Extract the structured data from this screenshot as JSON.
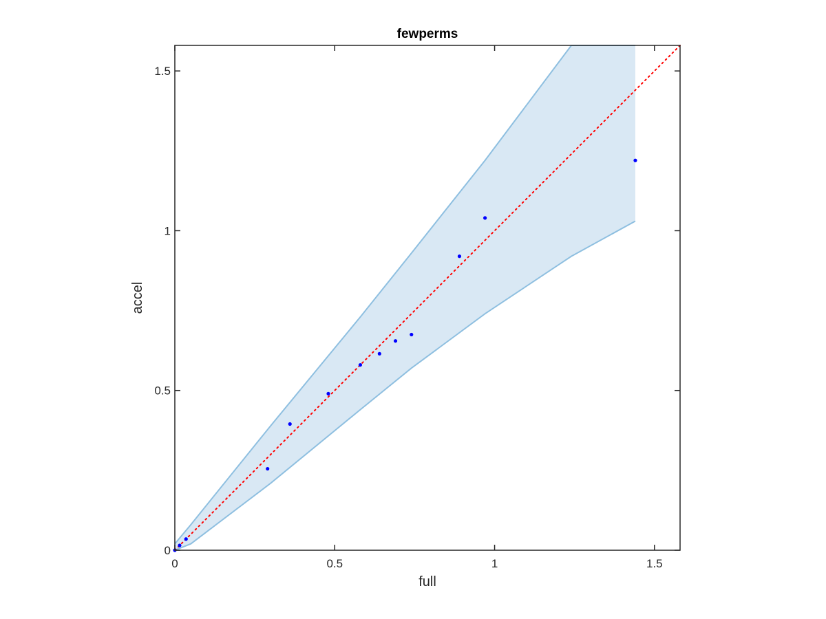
{
  "chart_data": {
    "type": "scatter",
    "title": "fewperms",
    "xlabel": "full",
    "ylabel": "accel",
    "xlim": [
      0,
      1.58
    ],
    "ylim": [
      0,
      1.58
    ],
    "xticks": [
      0,
      0.5,
      1,
      1.5
    ],
    "yticks": [
      0,
      0.5,
      1,
      1.5
    ],
    "xtick_labels": [
      "0",
      "0.5",
      "1",
      "1.5"
    ],
    "ytick_labels": [
      "0",
      "0.5",
      "1",
      "1.5"
    ],
    "grid": false,
    "series": [
      {
        "kind": "points",
        "color": "#0000ff",
        "x": [
          0.0,
          0.015,
          0.035,
          0.29,
          0.36,
          0.48,
          0.58,
          0.64,
          0.69,
          0.74,
          0.89,
          0.97,
          1.44
        ],
        "y": [
          0.0,
          0.015,
          0.035,
          0.255,
          0.395,
          0.49,
          0.58,
          0.615,
          0.655,
          0.675,
          0.92,
          1.04,
          1.22
        ]
      },
      {
        "kind": "band",
        "fill_color": "#d9e8f4",
        "edge_color": "#8ebfe0",
        "x": [
          0.0,
          0.05,
          0.3,
          0.58,
          0.74,
          0.97,
          1.24,
          1.44
        ],
        "upper": [
          0.02,
          0.08,
          0.39,
          0.73,
          0.93,
          1.22,
          1.58,
          1.58
        ],
        "lower": [
          0.0,
          0.02,
          0.21,
          0.44,
          0.57,
          0.74,
          0.92,
          1.03
        ]
      },
      {
        "kind": "reference-line",
        "color": "#ff0000",
        "style": "dotted",
        "x": [
          0,
          1.58
        ],
        "y": [
          0,
          1.58
        ]
      }
    ]
  }
}
